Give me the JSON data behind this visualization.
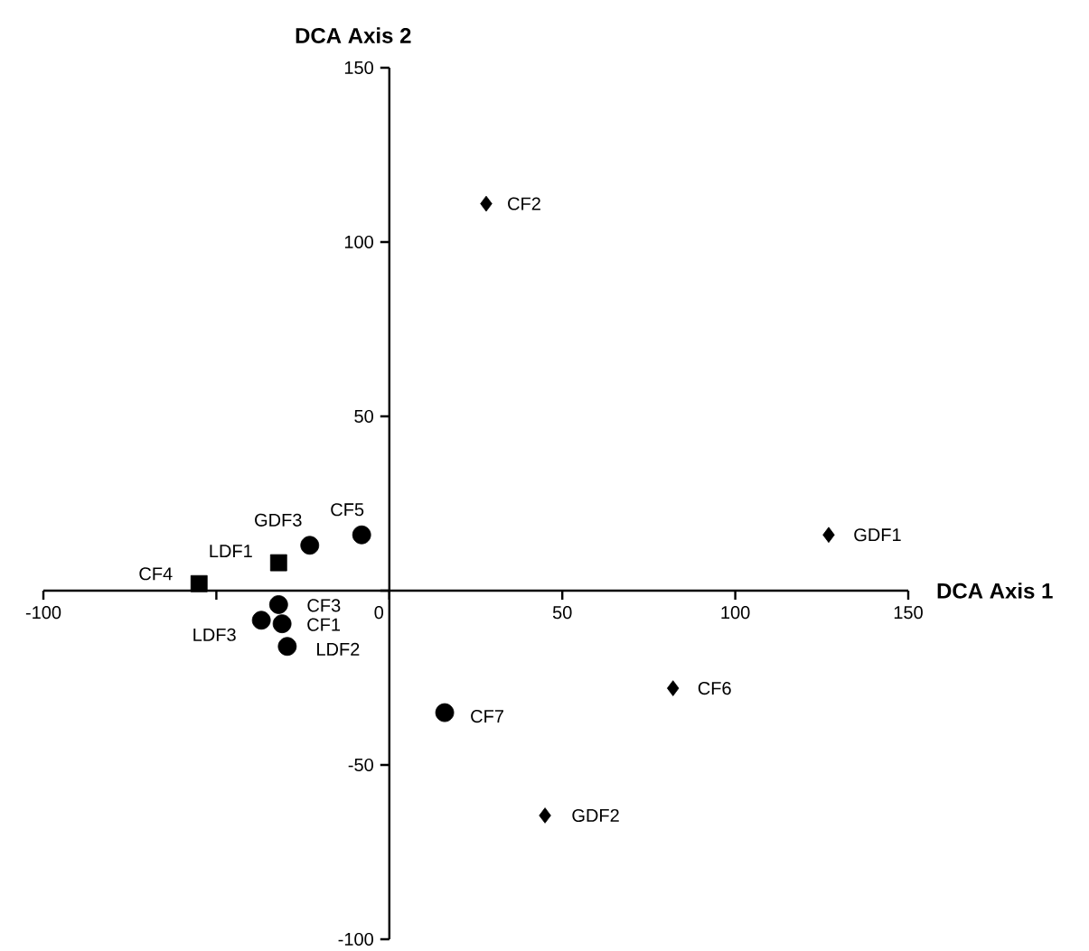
{
  "chart_data": {
    "type": "scatter",
    "xlabel": "DCA Axis 1",
    "ylabel": "DCA Axis 2",
    "xlim": [
      -100,
      150
    ],
    "ylim": [
      -100,
      150
    ],
    "xticks": [
      -100,
      {
        "value": -50,
        "label": null
      },
      0,
      50,
      100,
      150
    ],
    "yticks": [
      -100,
      -50,
      {
        "value": 0,
        "label": null
      },
      50,
      100,
      150
    ],
    "series": [
      {
        "color": "#000000",
        "marker": "diamond",
        "x": [
          28,
          127,
          82,
          45
        ],
        "values": [
          111,
          16,
          -28,
          -64.5
        ]
      },
      {
        "color": "#000000",
        "marker": "circle",
        "x": [
          16,
          -8,
          -23,
          -32,
          -31,
          -37,
          -29.5
        ],
        "values": [
          -35,
          16,
          13,
          -4,
          -9.5,
          -8.5,
          -16
        ]
      },
      {
        "color": "#000000",
        "marker": "square",
        "x": [
          -32,
          -55
        ],
        "values": [
          8,
          2
        ]
      }
    ],
    "annotations": [
      {
        "text": "CF2",
        "x": 28,
        "y": 111
      },
      {
        "text": "GDF1",
        "x": 127,
        "y": 16
      },
      {
        "text": "CF6",
        "x": 82,
        "y": -28
      },
      {
        "text": "GDF2",
        "x": 45,
        "y": -64.5
      },
      {
        "text": "CF7",
        "x": 16,
        "y": -35
      },
      {
        "text": "CF5",
        "x": -8,
        "y": 16
      },
      {
        "text": "GDF3",
        "x": -23,
        "y": 13
      },
      {
        "text": "LDF1",
        "x": -32,
        "y": 8
      },
      {
        "text": "CF4",
        "x": -55,
        "y": 2
      },
      {
        "text": "CF3",
        "x": -32,
        "y": -4
      },
      {
        "text": "CF1",
        "x": -31,
        "y": -9.5
      },
      {
        "text": "LDF3",
        "x": -37,
        "y": -8.5
      },
      {
        "text": "LDF2",
        "x": -29.5,
        "y": -16
      }
    ]
  }
}
